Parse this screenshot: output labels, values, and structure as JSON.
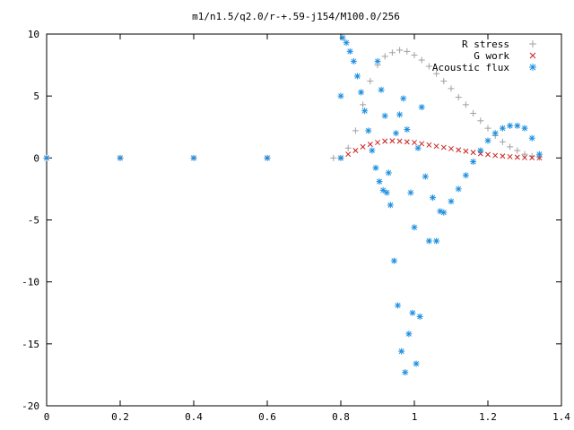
{
  "chart_data": {
    "type": "scatter",
    "title": "m1/n1.5/q2.0/r-+.59-j154/M100.0/256",
    "xlim": [
      0,
      1.4
    ],
    "ylim": [
      -20,
      10
    ],
    "x_ticks": [
      "0",
      "0.2",
      "0.4",
      "0.6",
      "0.8",
      "1",
      "1.2",
      "1.4"
    ],
    "y_ticks": [
      "10",
      "5",
      "0",
      "-5",
      "-10",
      "-15",
      "-20"
    ],
    "legend_position": "top-right",
    "series": [
      {
        "name": "R stress",
        "marker": "+",
        "color": "#a0a0a0",
        "points": [
          [
            0,
            0
          ],
          [
            0.2,
            0
          ],
          [
            0.4,
            0
          ],
          [
            0.6,
            0
          ],
          [
            0.78,
            0
          ],
          [
            0.8,
            0
          ],
          [
            0.82,
            0.8
          ],
          [
            0.84,
            2.2
          ],
          [
            0.86,
            4.3
          ],
          [
            0.88,
            6.2
          ],
          [
            0.9,
            7.5
          ],
          [
            0.92,
            8.2
          ],
          [
            0.94,
            8.5
          ],
          [
            0.96,
            8.7
          ],
          [
            0.98,
            8.6
          ],
          [
            1.0,
            8.3
          ],
          [
            1.02,
            7.9
          ],
          [
            1.04,
            7.4
          ],
          [
            1.06,
            6.8
          ],
          [
            1.08,
            6.2
          ],
          [
            1.1,
            5.6
          ],
          [
            1.12,
            4.9
          ],
          [
            1.14,
            4.3
          ],
          [
            1.16,
            3.6
          ],
          [
            1.18,
            3.0
          ],
          [
            1.2,
            2.4
          ],
          [
            1.22,
            1.8
          ],
          [
            1.24,
            1.3
          ],
          [
            1.26,
            0.9
          ],
          [
            1.28,
            0.6
          ],
          [
            1.3,
            0.3
          ],
          [
            1.32,
            0.15
          ],
          [
            1.34,
            0.05
          ]
        ]
      },
      {
        "name": "G work",
        "marker": "x",
        "color": "#cc2020",
        "points": [
          [
            0,
            0
          ],
          [
            0.2,
            0
          ],
          [
            0.4,
            0
          ],
          [
            0.6,
            0
          ],
          [
            0.8,
            0
          ],
          [
            0.82,
            0.3
          ],
          [
            0.84,
            0.6
          ],
          [
            0.86,
            0.9
          ],
          [
            0.88,
            1.1
          ],
          [
            0.9,
            1.25
          ],
          [
            0.92,
            1.35
          ],
          [
            0.94,
            1.38
          ],
          [
            0.96,
            1.35
          ],
          [
            0.98,
            1.3
          ],
          [
            1.0,
            1.25
          ],
          [
            1.02,
            1.15
          ],
          [
            1.04,
            1.05
          ],
          [
            1.06,
            0.95
          ],
          [
            1.08,
            0.85
          ],
          [
            1.1,
            0.75
          ],
          [
            1.12,
            0.65
          ],
          [
            1.14,
            0.55
          ],
          [
            1.16,
            0.45
          ],
          [
            1.18,
            0.35
          ],
          [
            1.2,
            0.28
          ],
          [
            1.22,
            0.2
          ],
          [
            1.24,
            0.15
          ],
          [
            1.26,
            0.1
          ],
          [
            1.28,
            0.06
          ],
          [
            1.3,
            0.03
          ],
          [
            1.32,
            0.02
          ],
          [
            1.34,
            0.01
          ]
        ]
      },
      {
        "name": "Acoustic flux",
        "marker": "*",
        "color": "#1c8fe0",
        "points": [
          [
            0,
            0
          ],
          [
            0.2,
            0
          ],
          [
            0.4,
            0
          ],
          [
            0.6,
            0
          ],
          [
            0.8,
            0
          ],
          [
            0.8,
            5.0
          ],
          [
            0.805,
            9.7
          ],
          [
            0.815,
            9.3
          ],
          [
            0.825,
            8.6
          ],
          [
            0.835,
            7.8
          ],
          [
            0.845,
            6.6
          ],
          [
            0.855,
            5.3
          ],
          [
            0.865,
            3.8
          ],
          [
            0.875,
            2.2
          ],
          [
            0.885,
            0.6
          ],
          [
            0.895,
            -0.8
          ],
          [
            0.905,
            -1.9
          ],
          [
            0.915,
            -2.6
          ],
          [
            0.925,
            -2.8
          ],
          [
            0.935,
            -3.8
          ],
          [
            0.945,
            -8.3
          ],
          [
            0.955,
            -11.9
          ],
          [
            0.965,
            -15.6
          ],
          [
            0.975,
            -17.3
          ],
          [
            0.985,
            -14.2
          ],
          [
            0.995,
            -12.5
          ],
          [
            1.005,
            -16.6
          ],
          [
            1.015,
            -12.8
          ],
          [
            0.9,
            7.8
          ],
          [
            0.91,
            5.5
          ],
          [
            0.92,
            3.4
          ],
          [
            0.93,
            -1.2
          ],
          [
            0.95,
            2.0
          ],
          [
            0.96,
            3.5
          ],
          [
            0.97,
            4.8
          ],
          [
            0.98,
            2.3
          ],
          [
            0.99,
            -2.8
          ],
          [
            1.0,
            -5.6
          ],
          [
            1.01,
            0.8
          ],
          [
            1.02,
            4.1
          ],
          [
            1.03,
            -1.5
          ],
          [
            1.04,
            -6.7
          ],
          [
            1.05,
            -3.2
          ],
          [
            1.06,
            -6.7
          ],
          [
            1.07,
            -4.3
          ],
          [
            1.08,
            -4.4
          ],
          [
            1.1,
            -3.5
          ],
          [
            1.12,
            -2.5
          ],
          [
            1.14,
            -1.4
          ],
          [
            1.16,
            -0.3
          ],
          [
            1.18,
            0.6
          ],
          [
            1.2,
            1.4
          ],
          [
            1.22,
            2.0
          ],
          [
            1.24,
            2.4
          ],
          [
            1.26,
            2.6
          ],
          [
            1.28,
            2.6
          ],
          [
            1.3,
            2.4
          ],
          [
            1.32,
            1.6
          ],
          [
            1.34,
            0.3
          ]
        ]
      }
    ]
  }
}
